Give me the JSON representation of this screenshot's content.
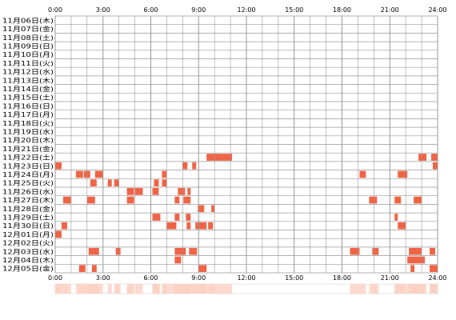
{
  "chart_data": {
    "type": "heatmap",
    "title": "",
    "xlabel": "",
    "ylabel": "",
    "x_range_hours": [
      0,
      24
    ],
    "x_tick_labels": [
      "0:00",
      "3:00",
      "6:00",
      "9:00",
      "12:00",
      "15:00",
      "18:00",
      "21:00",
      "24:00"
    ],
    "grid": true,
    "colors": {
      "activity": "#f06446",
      "grid": "#999999",
      "strip_base": "#ffffff",
      "strip_activity": "#fbd1c3"
    },
    "rows": [
      {
        "label": "11月06日(木)",
        "blocks": []
      },
      {
        "label": "11月07日(金)",
        "blocks": []
      },
      {
        "label": "11月08日(土)",
        "blocks": []
      },
      {
        "label": "11月09日(日)",
        "blocks": []
      },
      {
        "label": "11月10日(月)",
        "blocks": []
      },
      {
        "label": "11月11日(火)",
        "blocks": []
      },
      {
        "label": "11月12日(水)",
        "blocks": []
      },
      {
        "label": "11月13日(木)",
        "blocks": []
      },
      {
        "label": "11月14日(金)",
        "blocks": []
      },
      {
        "label": "11月15日(土)",
        "blocks": []
      },
      {
        "label": "11月16日(日)",
        "blocks": []
      },
      {
        "label": "11月17日(月)",
        "blocks": []
      },
      {
        "label": "11月18日(火)",
        "blocks": []
      },
      {
        "label": "11月19日(水)",
        "blocks": []
      },
      {
        "label": "11月20日(木)",
        "blocks": []
      },
      {
        "label": "11月21日(金)",
        "blocks": []
      },
      {
        "label": "11月22日(土)",
        "blocks": [
          [
            9.5,
            10.5
          ],
          [
            10.5,
            11.1
          ],
          [
            22.8,
            23.3
          ],
          [
            23.6,
            24.0
          ]
        ]
      },
      {
        "label": "11月23日(日)",
        "blocks": [
          [
            0.0,
            0.4
          ],
          [
            8.0,
            8.3
          ],
          [
            8.6,
            8.85
          ],
          [
            23.7,
            24.0
          ]
        ]
      },
      {
        "label": "11月24日(月)",
        "blocks": [
          [
            1.3,
            1.75
          ],
          [
            1.8,
            2.2
          ],
          [
            2.5,
            3.0
          ],
          [
            6.7,
            7.0
          ],
          [
            19.1,
            19.5
          ],
          [
            21.5,
            22.1
          ]
        ]
      },
      {
        "label": "11月25日(火)",
        "blocks": [
          [
            2.2,
            2.6
          ],
          [
            3.3,
            3.55
          ],
          [
            3.7,
            4.0
          ],
          [
            6.2,
            6.5
          ],
          [
            6.7,
            7.0
          ]
        ]
      },
      {
        "label": "11月26日(水)",
        "blocks": [
          [
            4.5,
            4.95
          ],
          [
            5.0,
            5.5
          ],
          [
            6.1,
            6.5
          ],
          [
            7.7,
            8.15
          ],
          [
            8.3,
            8.5
          ]
        ]
      },
      {
        "label": "11月27日(木)",
        "blocks": [
          [
            0.5,
            1.0
          ],
          [
            2.0,
            2.5
          ],
          [
            4.5,
            4.95
          ],
          [
            7.5,
            7.8
          ],
          [
            8.05,
            8.5
          ],
          [
            19.7,
            20.2
          ],
          [
            21.3,
            21.7
          ],
          [
            22.5,
            23.0
          ]
        ]
      },
      {
        "label": "11月28日(金)",
        "blocks": [
          [
            8.95,
            9.35
          ],
          [
            9.8,
            10.0
          ]
        ]
      },
      {
        "label": "11月29日(土)",
        "blocks": [
          [
            6.1,
            6.6
          ],
          [
            7.5,
            7.8
          ],
          [
            8.2,
            8.5
          ],
          [
            21.3,
            21.5
          ]
        ]
      },
      {
        "label": "11月30日(日)",
        "blocks": [
          [
            0.4,
            0.75
          ],
          [
            7.0,
            7.6
          ],
          [
            8.25,
            8.5
          ],
          [
            8.8,
            9.5
          ],
          [
            9.6,
            9.9
          ],
          [
            21.5,
            22.0
          ]
        ]
      },
      {
        "label": "12月01日(月)",
        "blocks": [
          [
            0.0,
            0.4
          ]
        ]
      },
      {
        "label": "12月02日(火)",
        "blocks": []
      },
      {
        "label": "12月03日(水)",
        "blocks": [
          [
            2.1,
            2.75
          ],
          [
            3.8,
            4.1
          ],
          [
            7.5,
            8.2
          ],
          [
            8.4,
            8.9
          ],
          [
            18.5,
            19.1
          ],
          [
            19.9,
            20.3
          ],
          [
            22.2,
            23.0
          ],
          [
            23.5,
            23.85
          ]
        ]
      },
      {
        "label": "12月04日(木)",
        "blocks": [
          [
            7.5,
            7.9
          ],
          [
            22.1,
            23.2
          ]
        ]
      },
      {
        "label": "12月05日(金)",
        "blocks": [
          [
            1.5,
            1.9
          ],
          [
            2.3,
            2.6
          ],
          [
            9.0,
            9.5
          ],
          [
            22.3,
            22.55
          ],
          [
            23.5,
            24.0
          ]
        ]
      }
    ]
  }
}
